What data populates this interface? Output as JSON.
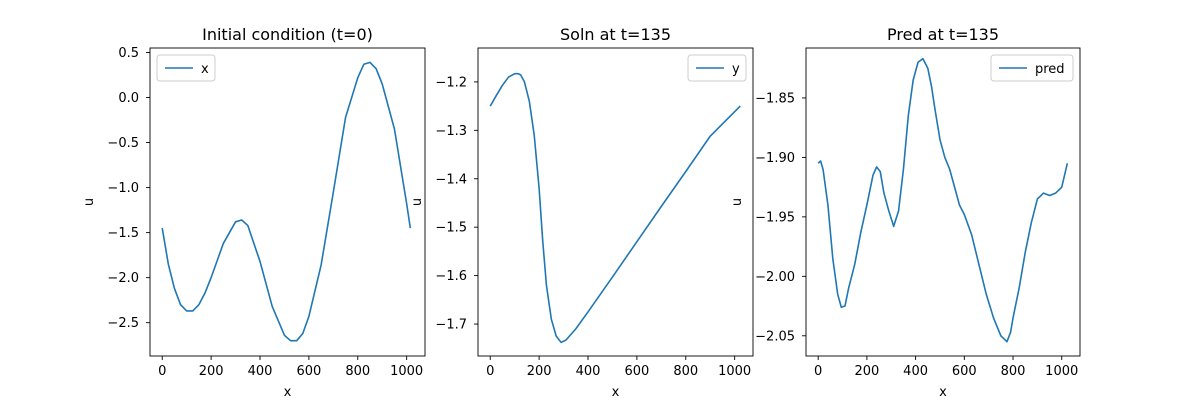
{
  "chart_data": [
    {
      "type": "line",
      "title": "Initial condition (t=0)",
      "xlabel": "x",
      "ylabel": "u",
      "legend_location": "upper-left",
      "xlim": [
        -50,
        1075
      ],
      "ylim": [
        -2.87,
        0.55
      ],
      "xticks": [
        0,
        200,
        400,
        600,
        800,
        1000
      ],
      "yticks": [
        0.5,
        0.0,
        -0.5,
        -1.0,
        -1.5,
        -2.0,
        -2.5
      ],
      "ytick_labels": [
        "0.5",
        "0.0",
        "−0.5",
        "−1.0",
        "−1.5",
        "−2.0",
        "−2.5"
      ],
      "series": [
        {
          "name": "x",
          "color": "#1f77b4",
          "x": [
            0,
            25,
            50,
            75,
            100,
            125,
            150,
            175,
            200,
            250,
            300,
            325,
            350,
            400,
            450,
            500,
            525,
            550,
            575,
            600,
            650,
            700,
            750,
            800,
            825,
            850,
            875,
            900,
            950,
            1000,
            1015
          ],
          "y": [
            -1.45,
            -1.85,
            -2.12,
            -2.3,
            -2.37,
            -2.37,
            -2.3,
            -2.17,
            -2.0,
            -1.62,
            -1.38,
            -1.36,
            -1.42,
            -1.82,
            -2.32,
            -2.64,
            -2.7,
            -2.7,
            -2.62,
            -2.43,
            -1.86,
            -1.05,
            -0.22,
            0.22,
            0.37,
            0.39,
            0.32,
            0.15,
            -0.35,
            -1.18,
            -1.45
          ]
        }
      ]
    },
    {
      "type": "line",
      "title": "Soln at t=135",
      "xlabel": "x",
      "ylabel": "u",
      "legend_location": "upper-right",
      "xlim": [
        -50,
        1075
      ],
      "ylim": [
        -1.766,
        -1.13
      ],
      "xticks": [
        0,
        200,
        400,
        600,
        800,
        1000
      ],
      "yticks": [
        -1.2,
        -1.3,
        -1.4,
        -1.5,
        -1.6,
        -1.7
      ],
      "ytick_labels": [
        "−1.2",
        "−1.3",
        "−1.4",
        "−1.5",
        "−1.6",
        "−1.7"
      ],
      "series": [
        {
          "name": "y",
          "color": "#1f77b4",
          "x": [
            0,
            25,
            50,
            75,
            100,
            115,
            125,
            140,
            160,
            180,
            200,
            215,
            230,
            250,
            270,
            290,
            310,
            350,
            400,
            500,
            600,
            700,
            800,
            900,
            1023
          ],
          "y": [
            -1.25,
            -1.228,
            -1.207,
            -1.19,
            -1.183,
            -1.183,
            -1.186,
            -1.2,
            -1.24,
            -1.31,
            -1.42,
            -1.53,
            -1.62,
            -1.69,
            -1.725,
            -1.738,
            -1.733,
            -1.71,
            -1.675,
            -1.603,
            -1.53,
            -1.457,
            -1.385,
            -1.312,
            -1.25
          ]
        }
      ]
    },
    {
      "type": "line",
      "title": "Pred at t=135",
      "xlabel": "x",
      "ylabel": "u",
      "legend_location": "upper-right",
      "xlim": [
        -50,
        1075
      ],
      "ylim": [
        -2.067,
        -1.808
      ],
      "xticks": [
        0,
        200,
        400,
        600,
        800,
        1000
      ],
      "yticks": [
        -1.85,
        -1.9,
        -1.95,
        -2.0,
        -2.05
      ],
      "ytick_labels": [
        "−1.85",
        "−1.90",
        "−1.95",
        "−2.00",
        "−2.05"
      ],
      "series": [
        {
          "name": "pred",
          "color": "#1f77b4",
          "x": [
            0,
            10,
            20,
            40,
            60,
            80,
            95,
            110,
            125,
            150,
            175,
            200,
            225,
            240,
            255,
            270,
            290,
            310,
            330,
            350,
            370,
            390,
            410,
            430,
            450,
            465,
            480,
            500,
            520,
            540,
            560,
            580,
            600,
            630,
            660,
            690,
            720,
            750,
            775,
            790,
            800,
            825,
            850,
            875,
            900,
            925,
            950,
            975,
            1000,
            1023
          ],
          "y": [
            -1.905,
            -1.903,
            -1.91,
            -1.94,
            -1.985,
            -2.015,
            -2.026,
            -2.025,
            -2.01,
            -1.99,
            -1.963,
            -1.94,
            -1.915,
            -1.908,
            -1.912,
            -1.93,
            -1.945,
            -1.958,
            -1.945,
            -1.91,
            -1.865,
            -1.835,
            -1.82,
            -1.817,
            -1.825,
            -1.84,
            -1.86,
            -1.885,
            -1.9,
            -1.91,
            -1.925,
            -1.94,
            -1.948,
            -1.965,
            -1.99,
            -2.015,
            -2.035,
            -2.05,
            -2.055,
            -2.047,
            -2.035,
            -2.01,
            -1.98,
            -1.955,
            -1.935,
            -1.93,
            -1.932,
            -1.93,
            -1.925,
            -1.905
          ]
        }
      ]
    }
  ]
}
